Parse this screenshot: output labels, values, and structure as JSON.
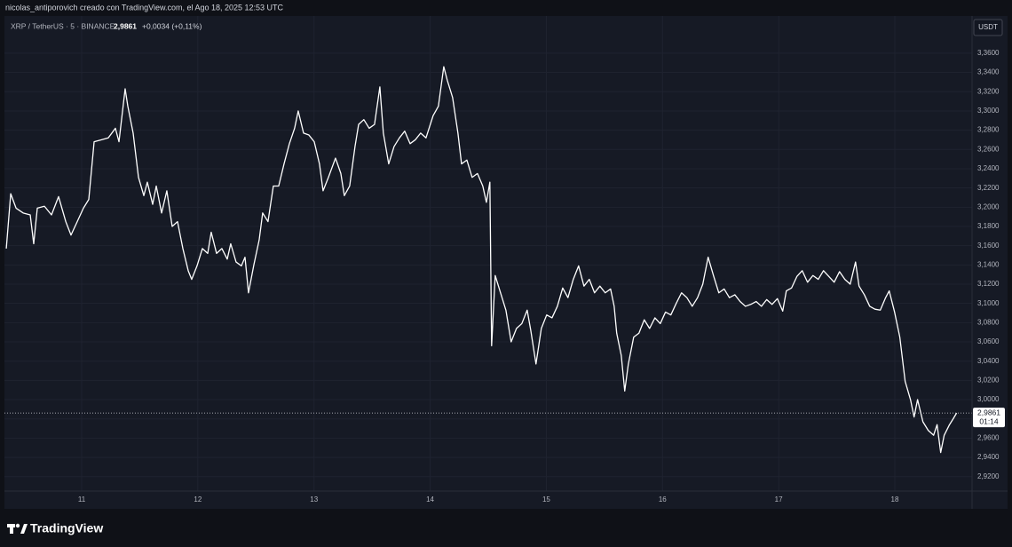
{
  "header": {
    "caption": "nicolas_antiporovich creado con TradingView.com, el Ago 18, 2025 12:53 UTC"
  },
  "chart_data": {
    "type": "line",
    "symbol": "XRP / TetherUS · 5 · BINANCE",
    "last_price": {
      "value": 2.9861,
      "label": "2,9861"
    },
    "change": "+0,0034 (+0,11%)",
    "currency": "USDT",
    "countdown": "01:14",
    "color": "#ffffff",
    "x": [
      10.351,
      10.389,
      10.435,
      10.496,
      10.557,
      10.587,
      10.618,
      10.679,
      10.74,
      10.801,
      10.863,
      10.908,
      10.954,
      11.015,
      11.061,
      11.107,
      11.168,
      11.229,
      11.29,
      11.321,
      11.374,
      11.397,
      11.443,
      11.489,
      11.535,
      11.565,
      11.611,
      11.642,
      11.688,
      11.733,
      11.779,
      11.825,
      11.871,
      11.917,
      11.947,
      11.993,
      12.039,
      12.085,
      12.115,
      12.161,
      12.207,
      12.253,
      12.283,
      12.329,
      12.375,
      12.406,
      12.436,
      12.482,
      12.528,
      12.558,
      12.604,
      12.65,
      12.696,
      12.742,
      12.788,
      12.833,
      12.864,
      12.91,
      12.956,
      13.002,
      13.047,
      13.078,
      13.124,
      13.185,
      13.231,
      13.261,
      13.307,
      13.353,
      13.384,
      13.429,
      13.475,
      13.521,
      13.567,
      13.597,
      13.643,
      13.689,
      13.735,
      13.781,
      13.827,
      13.872,
      13.918,
      13.964,
      14.025,
      14.071,
      14.117,
      14.147,
      14.193,
      14.239,
      14.27,
      14.316,
      14.361,
      14.407,
      14.453,
      14.484,
      14.514,
      14.529,
      14.56,
      14.606,
      14.652,
      14.697,
      14.743,
      14.789,
      14.835,
      14.866,
      14.911,
      14.957,
      15.003,
      15.049,
      15.095,
      15.141,
      15.186,
      15.232,
      15.278,
      15.324,
      15.37,
      15.415,
      15.461,
      15.507,
      15.553,
      15.584,
      15.606,
      15.645,
      15.675,
      15.706,
      15.752,
      15.797,
      15.843,
      15.889,
      15.935,
      15.981,
      16.026,
      16.072,
      16.118,
      16.164,
      16.21,
      16.256,
      16.302,
      16.347,
      16.393,
      16.439,
      16.485,
      16.531,
      16.576,
      16.623,
      16.668,
      16.714,
      16.76,
      16.806,
      16.852,
      16.897,
      16.943,
      16.989,
      17.035,
      17.066,
      17.111,
      17.157,
      17.203,
      17.249,
      17.295,
      17.341,
      17.386,
      17.432,
      17.478,
      17.524,
      17.57,
      17.616,
      17.662,
      17.692,
      17.738,
      17.784,
      17.829,
      17.875,
      17.921,
      17.952,
      17.998,
      18.043,
      18.089,
      18.135,
      18.166,
      18.196,
      18.242,
      18.288,
      18.334,
      18.364,
      18.395,
      18.425,
      18.471,
      18.502,
      18.532
    ],
    "values": [
      3.157,
      3.214,
      3.199,
      3.194,
      3.192,
      3.162,
      3.199,
      3.201,
      3.192,
      3.211,
      3.185,
      3.171,
      3.183,
      3.199,
      3.208,
      3.268,
      3.27,
      3.272,
      3.282,
      3.268,
      3.323,
      3.305,
      3.277,
      3.231,
      3.212,
      3.226,
      3.203,
      3.222,
      3.194,
      3.217,
      3.18,
      3.185,
      3.157,
      3.134,
      3.125,
      3.139,
      3.157,
      3.152,
      3.174,
      3.152,
      3.157,
      3.146,
      3.162,
      3.143,
      3.139,
      3.148,
      3.111,
      3.14,
      3.166,
      3.194,
      3.185,
      3.222,
      3.222,
      3.245,
      3.266,
      3.282,
      3.3,
      3.277,
      3.275,
      3.268,
      3.245,
      3.217,
      3.231,
      3.251,
      3.235,
      3.212,
      3.222,
      3.263,
      3.286,
      3.291,
      3.282,
      3.286,
      3.325,
      3.277,
      3.245,
      3.263,
      3.272,
      3.279,
      3.266,
      3.27,
      3.277,
      3.272,
      3.295,
      3.305,
      3.346,
      3.332,
      3.314,
      3.277,
      3.245,
      3.249,
      3.231,
      3.235,
      3.222,
      3.205,
      3.226,
      3.056,
      3.129,
      3.111,
      3.093,
      3.06,
      3.074,
      3.079,
      3.093,
      3.072,
      3.037,
      3.074,
      3.088,
      3.085,
      3.097,
      3.116,
      3.106,
      3.125,
      3.139,
      3.118,
      3.125,
      3.111,
      3.118,
      3.111,
      3.115,
      3.097,
      3.069,
      3.046,
      3.009,
      3.037,
      3.065,
      3.069,
      3.083,
      3.074,
      3.085,
      3.079,
      3.091,
      3.088,
      3.1,
      3.111,
      3.106,
      3.097,
      3.106,
      3.12,
      3.148,
      3.129,
      3.111,
      3.115,
      3.106,
      3.109,
      3.102,
      3.097,
      3.099,
      3.102,
      3.097,
      3.104,
      3.099,
      3.105,
      3.092,
      3.113,
      3.116,
      3.128,
      3.134,
      3.122,
      3.129,
      3.125,
      3.134,
      3.128,
      3.122,
      3.133,
      3.125,
      3.12,
      3.143,
      3.118,
      3.109,
      3.097,
      3.094,
      3.093,
      3.106,
      3.113,
      3.091,
      3.065,
      3.019,
      3.0,
      2.982,
      3.0,
      2.977,
      2.968,
      2.963,
      2.974,
      2.945,
      2.963,
      2.974,
      2.98,
      2.9861
    ],
    "xlim": [
      10.335,
      18.665
    ],
    "xticks": [
      11,
      12,
      13,
      14,
      15,
      16,
      17,
      18
    ],
    "ylim": [
      2.905,
      3.395
    ],
    "yticks": [
      {
        "value": 2.92,
        "label": "2,9200"
      },
      {
        "value": 2.94,
        "label": "2,9400"
      },
      {
        "value": 2.96,
        "label": "2,9600"
      },
      {
        "value": 2.98,
        "label": "2,9800"
      },
      {
        "value": 3.0,
        "label": "3,0000"
      },
      {
        "value": 3.02,
        "label": "3,0200"
      },
      {
        "value": 3.04,
        "label": "3,0400"
      },
      {
        "value": 3.06,
        "label": "3,0600"
      },
      {
        "value": 3.08,
        "label": "3,0800"
      },
      {
        "value": 3.1,
        "label": "3,1000"
      },
      {
        "value": 3.12,
        "label": "3,1200"
      },
      {
        "value": 3.14,
        "label": "3,1400"
      },
      {
        "value": 3.16,
        "label": "3,1600"
      },
      {
        "value": 3.18,
        "label": "3,1800"
      },
      {
        "value": 3.2,
        "label": "3,2000"
      },
      {
        "value": 3.22,
        "label": "3,2200"
      },
      {
        "value": 3.24,
        "label": "3,2400"
      },
      {
        "value": 3.26,
        "label": "3,2600"
      },
      {
        "value": 3.28,
        "label": "3,2800"
      },
      {
        "value": 3.3,
        "label": "3,3000"
      },
      {
        "value": 3.32,
        "label": "3,3200"
      },
      {
        "value": 3.34,
        "label": "3,3400"
      },
      {
        "value": 3.36,
        "label": "3,3600"
      }
    ],
    "grid": true
  },
  "footer": {
    "logo": "TradingView"
  }
}
